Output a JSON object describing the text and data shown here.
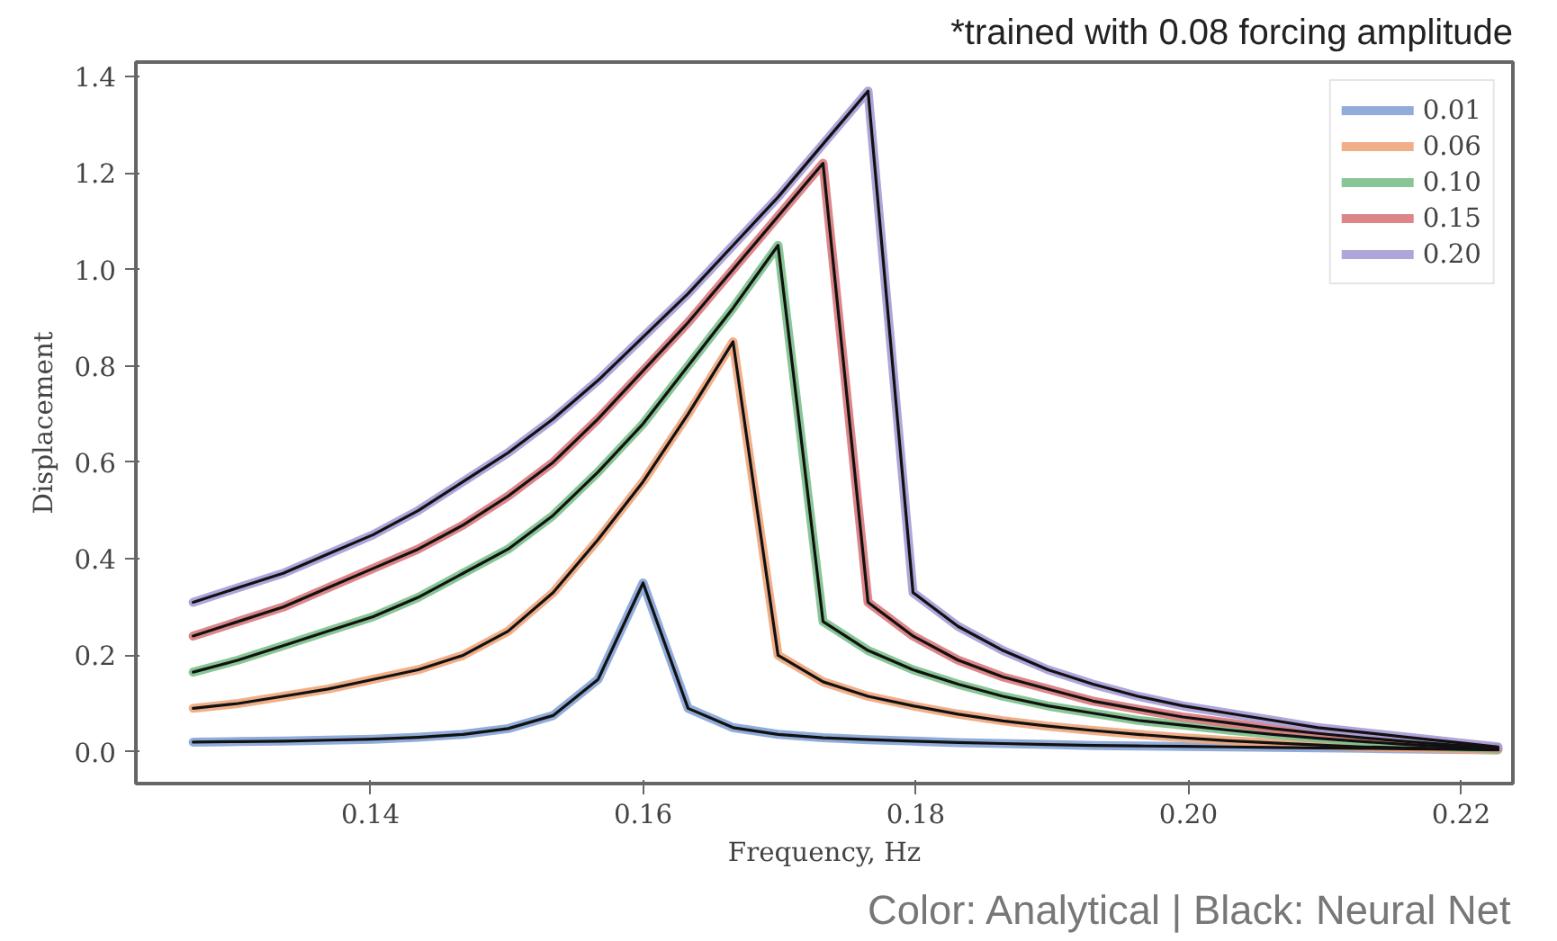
{
  "chart_data": {
    "type": "line",
    "xlabel": "Frequency, Hz",
    "ylabel": "Displacement",
    "annotations": [
      "*trained with 0.08 forcing amplitude",
      "Color: Analytical | Black: Neural Net"
    ],
    "x": [
      0.127,
      0.1303,
      0.1336,
      0.1369,
      0.1402,
      0.1435,
      0.1468,
      0.1501,
      0.1534,
      0.1567,
      0.16,
      0.1633,
      0.1666,
      0.1699,
      0.1732,
      0.1765,
      0.1798,
      0.1831,
      0.1864,
      0.1897,
      0.193,
      0.1963,
      0.1996,
      0.2029,
      0.2062,
      0.2095,
      0.2128,
      0.2161,
      0.2194,
      0.2227
    ],
    "xlim": [
      0.1228,
      0.2238
    ],
    "xticks": [
      {
        "value": 0.14,
        "label": "0.14"
      },
      {
        "value": 0.16,
        "label": "0.16"
      },
      {
        "value": 0.18,
        "label": "0.18"
      },
      {
        "value": 0.2,
        "label": "0.20"
      },
      {
        "value": 0.22,
        "label": "0.22"
      }
    ],
    "ylim": [
      -0.066,
      1.43
    ],
    "yticks": [
      {
        "value": 0,
        "label": "0.0"
      },
      0.2,
      0.4,
      0.6,
      0.8,
      {
        "value": 1,
        "label": "1.0"
      },
      1.2,
      1.4
    ],
    "grid": false,
    "legend": "top right",
    "line_style": "solid",
    "marker": "none",
    "series": [
      {
        "name": "0.01",
        "color": "#85a3d6",
        "values": [
          0.02,
          0.021,
          0.022,
          0.024,
          0.026,
          0.03,
          0.036,
          0.048,
          0.075,
          0.15,
          0.35,
          0.09,
          0.05,
          0.036,
          0.029,
          0.025,
          0.022,
          0.019,
          0.017,
          0.015,
          0.013,
          0.012,
          0.011,
          0.01,
          0.009,
          0.008,
          0.007,
          0.006,
          0.005,
          0.004
        ]
      },
      {
        "name": "0.06",
        "color": "#eea57c",
        "values": [
          0.09,
          0.1,
          0.115,
          0.13,
          0.15,
          0.17,
          0.2,
          0.25,
          0.33,
          0.44,
          0.56,
          0.7,
          0.85,
          0.2,
          0.145,
          0.115,
          0.095,
          0.078,
          0.064,
          0.053,
          0.044,
          0.036,
          0.029,
          0.023,
          0.018,
          0.014,
          0.01,
          0.008,
          0.006,
          0.004
        ]
      },
      {
        "name": "0.10",
        "color": "#7cc08b",
        "values": [
          0.165,
          0.19,
          0.22,
          0.25,
          0.28,
          0.32,
          0.37,
          0.42,
          0.49,
          0.58,
          0.68,
          0.8,
          0.92,
          1.05,
          0.27,
          0.21,
          0.17,
          0.14,
          0.115,
          0.095,
          0.08,
          0.065,
          0.055,
          0.045,
          0.036,
          0.028,
          0.021,
          0.015,
          0.01,
          0.006
        ]
      },
      {
        "name": "0.15",
        "color": "#d9797c",
        "values": [
          0.24,
          0.27,
          0.3,
          0.34,
          0.38,
          0.42,
          0.47,
          0.53,
          0.6,
          0.69,
          0.79,
          0.89,
          1.0,
          1.11,
          1.22,
          0.31,
          0.24,
          0.19,
          0.155,
          0.13,
          0.105,
          0.088,
          0.072,
          0.06,
          0.048,
          0.038,
          0.029,
          0.021,
          0.014,
          0.008
        ]
      },
      {
        "name": "0.20",
        "color": "#a79bd6",
        "values": [
          0.31,
          0.34,
          0.37,
          0.41,
          0.45,
          0.5,
          0.56,
          0.62,
          0.69,
          0.77,
          0.86,
          0.95,
          1.05,
          1.15,
          1.26,
          1.37,
          0.33,
          0.26,
          0.21,
          0.17,
          0.14,
          0.115,
          0.095,
          0.08,
          0.065,
          0.05,
          0.04,
          0.03,
          0.02,
          0.01
        ]
      },
      {
        "color": "#111111",
        "values": [
          0.02,
          0.021,
          0.022,
          0.024,
          0.026,
          0.03,
          0.036,
          0.048,
          0.075,
          0.15,
          0.35,
          0.09,
          0.05,
          0.036,
          0.029,
          0.025,
          0.022,
          0.019,
          0.017,
          0.015,
          0.013,
          0.012,
          0.011,
          0.01,
          0.009,
          0.008,
          0.007,
          0.006,
          0.005,
          0.004
        ]
      },
      {
        "color": "#111111",
        "values": [
          0.09,
          0.1,
          0.115,
          0.13,
          0.15,
          0.17,
          0.2,
          0.25,
          0.33,
          0.44,
          0.56,
          0.7,
          0.85,
          0.2,
          0.145,
          0.115,
          0.095,
          0.078,
          0.064,
          0.053,
          0.044,
          0.036,
          0.029,
          0.023,
          0.018,
          0.014,
          0.01,
          0.008,
          0.006,
          0.004
        ]
      },
      {
        "color": "#111111",
        "values": [
          0.165,
          0.19,
          0.22,
          0.25,
          0.28,
          0.32,
          0.37,
          0.42,
          0.49,
          0.58,
          0.68,
          0.8,
          0.92,
          1.05,
          0.27,
          0.21,
          0.17,
          0.14,
          0.115,
          0.095,
          0.08,
          0.065,
          0.055,
          0.045,
          0.036,
          0.028,
          0.021,
          0.015,
          0.01,
          0.006
        ]
      },
      {
        "color": "#111111",
        "values": [
          0.24,
          0.27,
          0.3,
          0.34,
          0.38,
          0.42,
          0.47,
          0.53,
          0.6,
          0.69,
          0.79,
          0.89,
          1.0,
          1.11,
          1.22,
          0.31,
          0.24,
          0.19,
          0.155,
          0.13,
          0.105,
          0.088,
          0.072,
          0.06,
          0.048,
          0.038,
          0.029,
          0.021,
          0.014,
          0.008
        ]
      },
      {
        "color": "#111111",
        "values": [
          0.31,
          0.34,
          0.37,
          0.41,
          0.45,
          0.5,
          0.56,
          0.62,
          0.69,
          0.77,
          0.86,
          0.95,
          1.05,
          1.15,
          1.26,
          1.37,
          0.33,
          0.26,
          0.21,
          0.17,
          0.14,
          0.115,
          0.095,
          0.08,
          0.065,
          0.05,
          0.04,
          0.03,
          0.02,
          0.01
        ]
      }
    ]
  }
}
